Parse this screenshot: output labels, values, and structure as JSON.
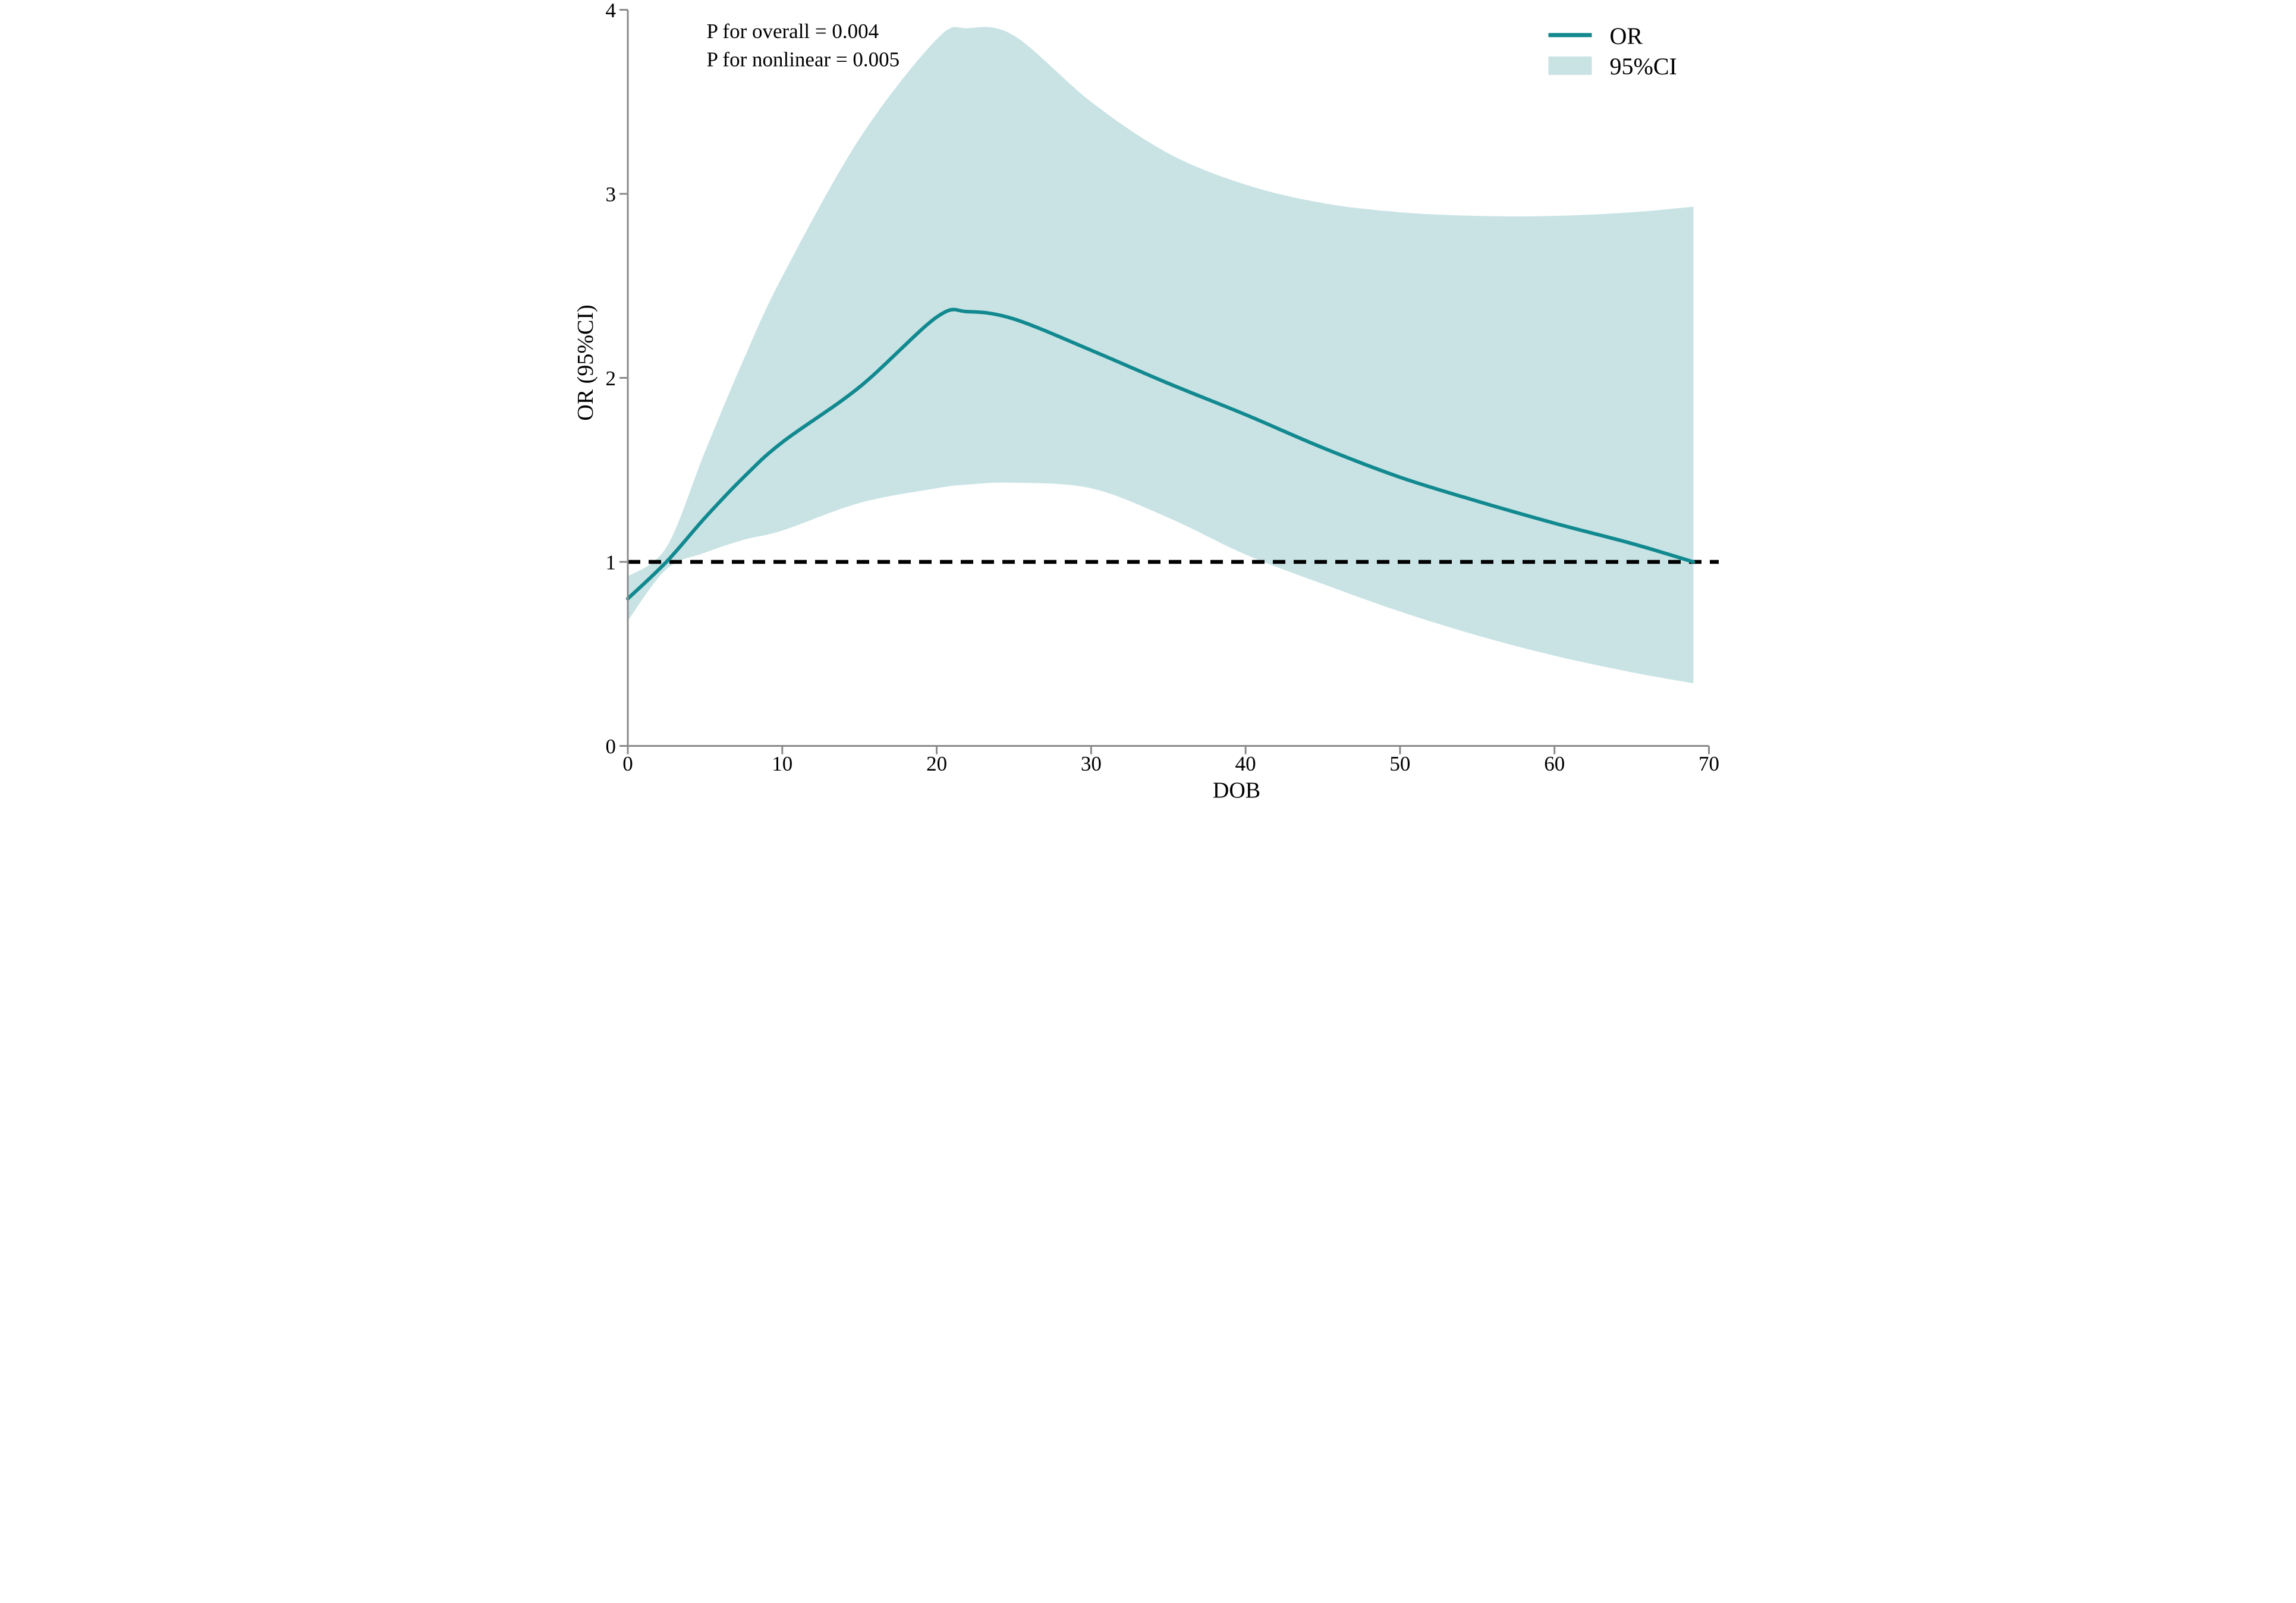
{
  "figure": {
    "colors": {
      "or_line": "#11898f",
      "ci_band": "#c9e3e5",
      "axis": "#8a8a8a",
      "reference_line": "#000000",
      "text": "#000000"
    }
  },
  "chart_data": {
    "type": "line",
    "title": "",
    "xlabel": "DOB",
    "ylabel": "OR (95%CI)",
    "xlim": [
      0,
      70
    ],
    "ylim": [
      0,
      4
    ],
    "x_ticks": [
      0,
      10,
      20,
      30,
      40,
      50,
      60,
      70
    ],
    "y_ticks": [
      0,
      1,
      2,
      3,
      4
    ],
    "reference_line_y": 1,
    "grid": false,
    "legend_position": "top-right",
    "legend": [
      "OR",
      "95%CI"
    ],
    "annotations": [
      "P for overall = 0.004",
      "P for nonlinear = 0.005"
    ],
    "x": [
      0,
      2.5,
      5,
      7.5,
      10,
      15,
      20,
      22,
      25,
      30,
      35,
      40,
      45,
      50,
      55,
      60,
      65,
      69
    ],
    "series": [
      {
        "name": "OR",
        "values": [
          0.8,
          1.0,
          1.24,
          1.46,
          1.65,
          1.95,
          2.33,
          2.36,
          2.32,
          2.15,
          1.97,
          1.8,
          1.62,
          1.46,
          1.33,
          1.21,
          1.1,
          1.0
        ]
      },
      {
        "name": "95%CI upper",
        "values": [
          0.92,
          1.08,
          1.6,
          2.1,
          2.55,
          3.3,
          3.84,
          3.9,
          3.86,
          3.5,
          3.22,
          3.05,
          2.95,
          2.9,
          2.88,
          2.88,
          2.9,
          2.93
        ]
      },
      {
        "name": "95%CI lower",
        "values": [
          0.68,
          0.96,
          1.05,
          1.12,
          1.17,
          1.32,
          1.4,
          1.42,
          1.43,
          1.4,
          1.24,
          1.04,
          0.88,
          0.73,
          0.6,
          0.49,
          0.4,
          0.34
        ]
      }
    ]
  }
}
